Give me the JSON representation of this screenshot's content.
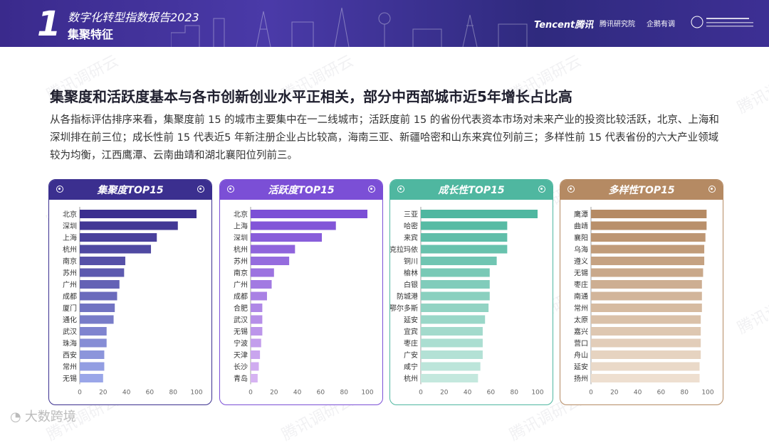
{
  "header": {
    "section_number": "1",
    "report_title": "数字化转型指数报告2023",
    "section_title": "集聚特征",
    "brand_tencent": "Tencent腾讯",
    "brand_research": "腾讯研究院",
    "brand_qimai": "企鹅有调",
    "brand_university": "清华大学"
  },
  "headline": "集聚度和活跃度基本与各市创新创业水平正相关，部分中西部城市近5年增长占比高",
  "description": "从各指标评估排序来看，集聚度前 15 的城市主要集中在一二线城市；活跃度前 15 的省份代表资本市场对未来产业的投资比较活跃，北京、上海和深圳排在前三位；成长性前 15 代表近5 年新注册企业占比较高，海南三亚、新疆哈密和山东来宾位列前三；多样性前 15 代表省份的六大产业领域较为均衡，江西鹰潭、云南曲靖和湖北襄阳位列前三。",
  "watermark_text": "腾讯调研云",
  "footer_logo": "大数跨境",
  "colors": {
    "header_bg": "#3a2a8c",
    "panel1": "#3b2f8f",
    "panel2": "#7b4fd6",
    "panel3": "#4fb7a0",
    "panel4": "#b58a63"
  },
  "chart_data": [
    {
      "type": "bar",
      "orientation": "horizontal",
      "title": "集聚度TOP15",
      "categories": [
        "北京",
        "深圳",
        "上海",
        "杭州",
        "南京",
        "苏州",
        "广州",
        "成都",
        "厦门",
        "通化",
        "武汉",
        "珠海",
        "西安",
        "常州",
        "无锡"
      ],
      "values": [
        100,
        84,
        66,
        61,
        39,
        38,
        34,
        32,
        30,
        29,
        23,
        23,
        21,
        21,
        20
      ],
      "xlim": [
        0,
        100
      ],
      "xticks": [
        "0",
        "20",
        "40",
        "60",
        "80",
        "100"
      ],
      "bar_color_start": "#3b2f8f",
      "bar_color_end": "#9aa6e8",
      "head_color": "#3b2f8f"
    },
    {
      "type": "bar",
      "orientation": "horizontal",
      "title": "活跃度TOP15",
      "categories": [
        "北京",
        "上海",
        "深圳",
        "杭州",
        "苏州",
        "南京",
        "广州",
        "成都",
        "合肥",
        "武汉",
        "无锡",
        "宁波",
        "天津",
        "长沙",
        "青岛"
      ],
      "values": [
        100,
        73,
        61,
        38,
        33,
        20,
        18,
        14,
        10,
        10,
        10,
        9,
        8,
        7,
        6
      ],
      "xlim": [
        0,
        100
      ],
      "xticks": [
        "0",
        "20",
        "40",
        "60",
        "80",
        "100"
      ],
      "bar_color_start": "#7b4fd6",
      "bar_color_end": "#d6b3f2",
      "head_color": "#7b4fd6"
    },
    {
      "type": "bar",
      "orientation": "horizontal",
      "title": "成长性TOP15",
      "categories": [
        "三亚",
        "哈密",
        "来宾",
        "克拉玛依",
        "铜川",
        "榆林",
        "白银",
        "防城港",
        "鄂尔多斯",
        "延安",
        "宜宾",
        "枣庄",
        "广安",
        "咸宁",
        "杭州"
      ],
      "values": [
        100,
        74,
        74,
        74,
        65,
        59,
        59,
        59,
        58,
        55,
        53,
        53,
        53,
        51,
        49
      ],
      "xlim": [
        0,
        100
      ],
      "xticks": [
        "0",
        "20",
        "40",
        "60",
        "80",
        "100"
      ],
      "bar_color_start": "#4fb7a0",
      "bar_color_end": "#c4e8de",
      "head_color": "#4fb7a0"
    },
    {
      "type": "bar",
      "orientation": "horizontal",
      "title": "多样性TOP15",
      "categories": [
        "鹰潭",
        "曲靖",
        "襄阳",
        "乌海",
        "遵义",
        "无锡",
        "枣庄",
        "南通",
        "常州",
        "太原",
        "嘉兴",
        "营口",
        "舟山",
        "延安",
        "扬州"
      ],
      "values": [
        99,
        99,
        98,
        97,
        97,
        96,
        95,
        95,
        95,
        94,
        94,
        94,
        94,
        93,
        93
      ],
      "xlim": [
        0,
        100
      ],
      "xticks": [
        "0",
        "20",
        "40",
        "60",
        "80",
        "100"
      ],
      "bar_color_start": "#b58a63",
      "bar_color_end": "#eedfd0",
      "head_color": "#b58a63"
    }
  ]
}
